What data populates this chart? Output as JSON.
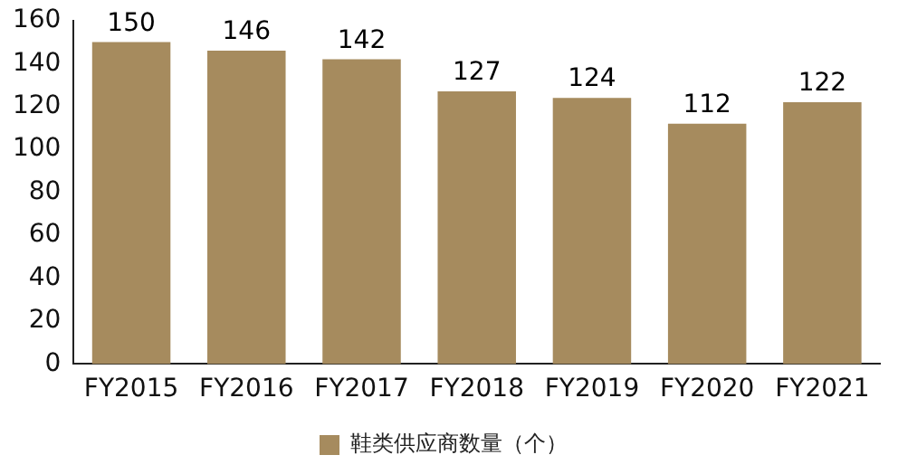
{
  "chart_data": {
    "type": "bar",
    "categories": [
      "FY2015",
      "FY2016",
      "FY2017",
      "FY2018",
      "FY2019",
      "FY2020",
      "FY2021"
    ],
    "series": [
      {
        "name": "鞋类供应商数量（个）",
        "color": "#a68b5e",
        "values": [
          150,
          146,
          142,
          127,
          124,
          112,
          122
        ]
      }
    ],
    "ylim": [
      0,
      160
    ],
    "yticks": [
      0,
      20,
      40,
      60,
      80,
      100,
      120,
      140,
      160
    ],
    "grid": false,
    "legend": "bottom",
    "data_labels": true
  }
}
